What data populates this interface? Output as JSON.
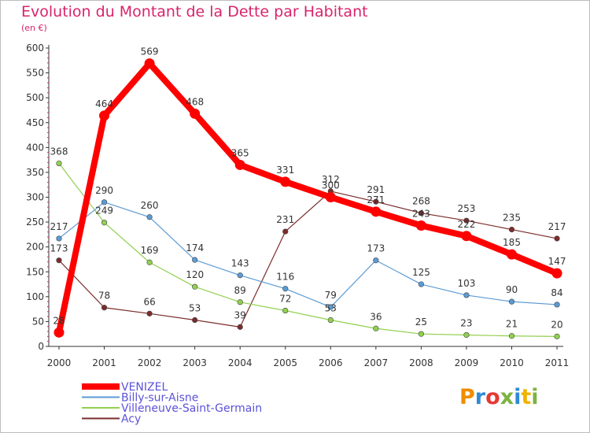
{
  "header": {
    "title": "Evolution du Montant de la Dette par Habitant",
    "unit": "(en €)"
  },
  "logo": {
    "text": "Proxiti"
  },
  "chart_data": {
    "type": "line",
    "title": "Evolution du Montant de la Dette par Habitant",
    "subtitle": "(en €)",
    "xlabel": "",
    "ylabel": "",
    "ylim": [
      0,
      600
    ],
    "yticks": [
      0,
      50,
      100,
      150,
      200,
      250,
      300,
      350,
      400,
      450,
      500,
      550,
      600
    ],
    "grid": false,
    "legend_position": "bottom-left",
    "x": [
      "2000",
      "2001",
      "2002",
      "2003",
      "2004",
      "2005",
      "2006",
      "2007",
      "2008",
      "2009",
      "2010",
      "2011"
    ],
    "series": [
      {
        "name": "VENIZEL",
        "color": "#ff0000",
        "values": [
          28,
          464,
          569,
          468,
          365,
          331,
          300,
          271,
          243,
          222,
          185,
          147
        ]
      },
      {
        "name": "Billy-sur-Aisne",
        "color": "#5b9bd5",
        "values": [
          217,
          290,
          260,
          174,
          143,
          116,
          79,
          173,
          125,
          103,
          90,
          84
        ]
      },
      {
        "name": "Villeneuve-Saint-Germain",
        "color": "#92d050",
        "values": [
          368,
          249,
          169,
          120,
          89,
          72,
          53,
          36,
          25,
          23,
          21,
          20
        ]
      },
      {
        "name": "Acy",
        "color": "#7b2c2c",
        "values": [
          173,
          78,
          66,
          53,
          39,
          231,
          312,
          291,
          268,
          253,
          235,
          217
        ]
      }
    ]
  }
}
